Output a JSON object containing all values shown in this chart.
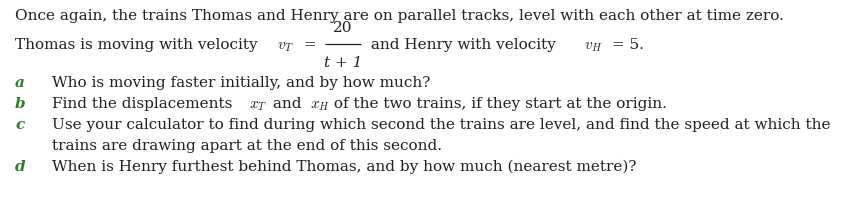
{
  "bg_color": "#ffffff",
  "text_color": "#231f20",
  "label_color": "#2e7d32",
  "line1": "Once again, the trains Thomas and Henry are on parallel tracks, level with each other at time zero.",
  "qa_label": "a",
  "qa_text": "Who is moving faster initially, and by how much?",
  "qb_label": "b",
  "qb_text_pre": "Find the displacements ",
  "qb_text_post": " of the two trains, if they start at the origin.",
  "qc_label": "c",
  "qc_text1": "Use your calculator to find during which second the trains are level, and find the speed at which the",
  "qc_text2": "trains are drawing apart at the end of this second.",
  "qd_label": "d",
  "qd_text": "When is Henry furthest behind Thomas, and by how much (nearest metre)?",
  "numerator": "20",
  "denominator": "t + 1",
  "fig_width": 8.43,
  "fig_height": 2.22,
  "dpi": 100,
  "fs": 11.0
}
